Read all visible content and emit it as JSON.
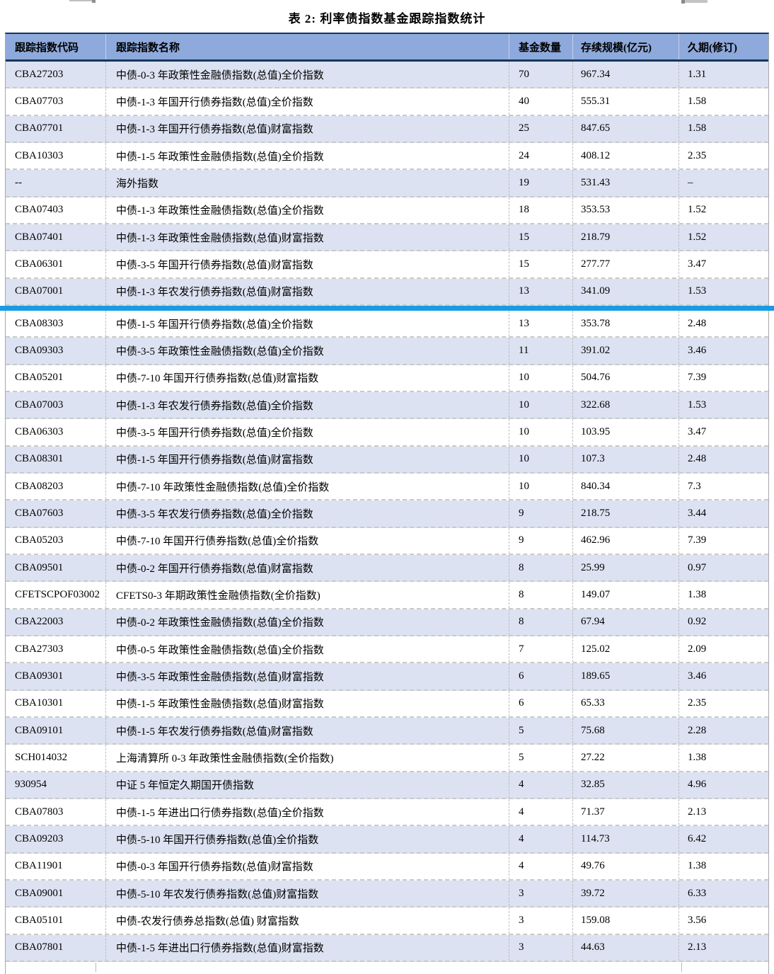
{
  "title": "表 2:  利率债指数基金跟踪指数统计",
  "colors": {
    "header_bg": "#8EA9DB",
    "alt_row_bg": "#DCE2F1",
    "header_border_navy": "#17365D",
    "accent_bar": "#189BE3"
  },
  "table": {
    "columns": [
      "跟踪指数代码",
      "跟踪指数名称",
      "基金数量",
      "存续规模(亿元)",
      "久期(修订)"
    ],
    "accent_bar_after_row": 9,
    "rows": [
      {
        "code": "CBA27203",
        "name": "中债-0-3 年政策性金融债指数(总值)全价指数",
        "count": "70",
        "scale": "967.34",
        "duration": "1.31"
      },
      {
        "code": "CBA07703",
        "name": "中债-1-3 年国开行债券指数(总值)全价指数",
        "count": "40",
        "scale": "555.31",
        "duration": "1.58"
      },
      {
        "code": "CBA07701",
        "name": "中债-1-3 年国开行债券指数(总值)财富指数",
        "count": "25",
        "scale": "847.65",
        "duration": "1.58"
      },
      {
        "code": "CBA10303",
        "name": "中债-1-5 年政策性金融债指数(总值)全价指数",
        "count": "24",
        "scale": "408.12",
        "duration": "2.35"
      },
      {
        "code": "--",
        "name": "海外指数",
        "count": "19",
        "scale": "531.43",
        "duration": "–"
      },
      {
        "code": "CBA07403",
        "name": "中债-1-3 年政策性金融债指数(总值)全价指数",
        "count": "18",
        "scale": "353.53",
        "duration": "1.52"
      },
      {
        "code": "CBA07401",
        "name": "中债-1-3 年政策性金融债指数(总值)财富指数",
        "count": "15",
        "scale": "218.79",
        "duration": "1.52"
      },
      {
        "code": "CBA06301",
        "name": "中债-3-5 年国开行债券指数(总值)财富指数",
        "count": "15",
        "scale": "277.77",
        "duration": "3.47"
      },
      {
        "code": "CBA07001",
        "name": "中债-1-3 年农发行债券指数(总值)财富指数",
        "count": "13",
        "scale": "341.09",
        "duration": "1.53"
      },
      {
        "code": "CBA08303",
        "name": "中债-1-5 年国开行债券指数(总值)全价指数",
        "count": "13",
        "scale": "353.78",
        "duration": "2.48"
      },
      {
        "code": "CBA09303",
        "name": "中债-3-5 年政策性金融债指数(总值)全价指数",
        "count": "11",
        "scale": "391.02",
        "duration": "3.46"
      },
      {
        "code": "CBA05201",
        "name": "中债-7-10 年国开行债券指数(总值)财富指数",
        "count": "10",
        "scale": "504.76",
        "duration": "7.39"
      },
      {
        "code": "CBA07003",
        "name": "中债-1-3 年农发行债券指数(总值)全价指数",
        "count": "10",
        "scale": "322.68",
        "duration": "1.53"
      },
      {
        "code": "CBA06303",
        "name": "中债-3-5 年国开行债券指数(总值)全价指数",
        "count": "10",
        "scale": "103.95",
        "duration": "3.47"
      },
      {
        "code": "CBA08301",
        "name": "中债-1-5 年国开行债券指数(总值)财富指数",
        "count": "10",
        "scale": "107.3",
        "duration": "2.48"
      },
      {
        "code": "CBA08203",
        "name": "中债-7-10 年政策性金融债指数(总值)全价指数",
        "count": "10",
        "scale": "840.34",
        "duration": "7.3"
      },
      {
        "code": "CBA07603",
        "name": "中债-3-5 年农发行债券指数(总值)全价指数",
        "count": "9",
        "scale": "218.75",
        "duration": "3.44"
      },
      {
        "code": "CBA05203",
        "name": "中债-7-10 年国开行债券指数(总值)全价指数",
        "count": "9",
        "scale": "462.96",
        "duration": "7.39"
      },
      {
        "code": "CBA09501",
        "name": "中债-0-2 年国开行债券指数(总值)财富指数",
        "count": "8",
        "scale": "25.99",
        "duration": "0.97"
      },
      {
        "code": "CFETSCPOF03002",
        "name": "CFETS0-3 年期政策性金融债指数(全价指数)",
        "count": "8",
        "scale": "149.07",
        "duration": "1.38"
      },
      {
        "code": "CBA22003",
        "name": "中债-0-2 年政策性金融债指数(总值)全价指数",
        "count": "8",
        "scale": "67.94",
        "duration": "0.92"
      },
      {
        "code": "CBA27303",
        "name": "中债-0-5 年政策性金融债指数(总值)全价指数",
        "count": "7",
        "scale": "125.02",
        "duration": "2.09"
      },
      {
        "code": "CBA09301",
        "name": "中债-3-5 年政策性金融债指数(总值)财富指数",
        "count": "6",
        "scale": "189.65",
        "duration": "3.46"
      },
      {
        "code": "CBA10301",
        "name": "中债-1-5 年政策性金融债指数(总值)财富指数",
        "count": "6",
        "scale": "65.33",
        "duration": "2.35"
      },
      {
        "code": "CBA09101",
        "name": "中债-1-5 年农发行债券指数(总值)财富指数",
        "count": "5",
        "scale": "75.68",
        "duration": "2.28"
      },
      {
        "code": "SCH014032",
        "name": "上海清算所 0-3 年政策性金融债指数(全价指数)",
        "count": "5",
        "scale": "27.22",
        "duration": "1.38"
      },
      {
        "code": "930954",
        "name": "中证 5 年恒定久期国开债指数",
        "count": "4",
        "scale": "32.85",
        "duration": "4.96"
      },
      {
        "code": "CBA07803",
        "name": "中债-1-5 年进出口行债券指数(总值)全价指数",
        "count": "4",
        "scale": "71.37",
        "duration": "2.13"
      },
      {
        "code": "CBA09203",
        "name": "中债-5-10 年国开行债券指数(总值)全价指数",
        "count": "4",
        "scale": "114.73",
        "duration": "6.42"
      },
      {
        "code": "CBA11901",
        "name": "中债-0-3 年国开行债券指数(总值)财富指数",
        "count": "4",
        "scale": "49.76",
        "duration": "1.38"
      },
      {
        "code": "CBA09001",
        "name": "中债-5-10 年农发行债券指数(总值)财富指数",
        "count": "3",
        "scale": "39.72",
        "duration": "6.33"
      },
      {
        "code": "CBA05101",
        "name": "中债-农发行债券总指数(总值) 财富指数",
        "count": "3",
        "scale": "159.08",
        "duration": "3.56"
      },
      {
        "code": "CBA07801",
        "name": "中债-1-5 年进出口行债券指数(总值)财富指数",
        "count": "3",
        "scale": "44.63",
        "duration": "2.13"
      }
    ]
  }
}
